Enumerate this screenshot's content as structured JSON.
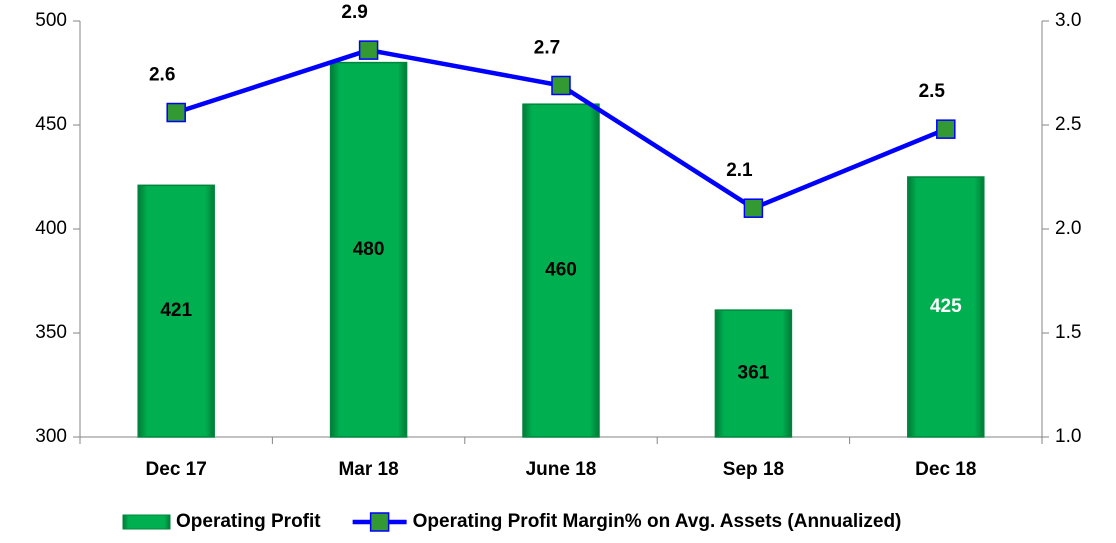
{
  "chart_data": {
    "type": "bar_line",
    "categories": [
      "Dec 17",
      "Mar 18",
      "June 18",
      "Sep 18",
      "Dec 18"
    ],
    "series": [
      {
        "name": "Operating Profit",
        "type": "bar",
        "color": "#00b050",
        "values": [
          421,
          480,
          460,
          361,
          425
        ]
      },
      {
        "name": "Operating Profit Margin% on Avg. Assets (Annualized)",
        "type": "line",
        "axis": "y2",
        "color": "#0000ff",
        "marker_color": "#339933",
        "values": [
          2.56,
          2.86,
          2.69,
          2.1,
          2.48
        ],
        "value_labels": [
          "2.6",
          "2.9",
          "2.7",
          "2.1",
          "2.5"
        ]
      }
    ],
    "ylim": [
      300,
      500
    ],
    "yticks": [
      300,
      350,
      400,
      450,
      500
    ],
    "y2lim": [
      1.0,
      3.0
    ],
    "y2ticks": [
      {
        "value": 1.0,
        "label": "1.0"
      },
      {
        "value": 1.5,
        "label": "1.5"
      },
      {
        "value": 2.0,
        "label": "2.0"
      },
      {
        "value": 2.5,
        "label": "2.5"
      },
      {
        "value": 3.0,
        "label": "3.0"
      }
    ],
    "legend": "bottom"
  }
}
